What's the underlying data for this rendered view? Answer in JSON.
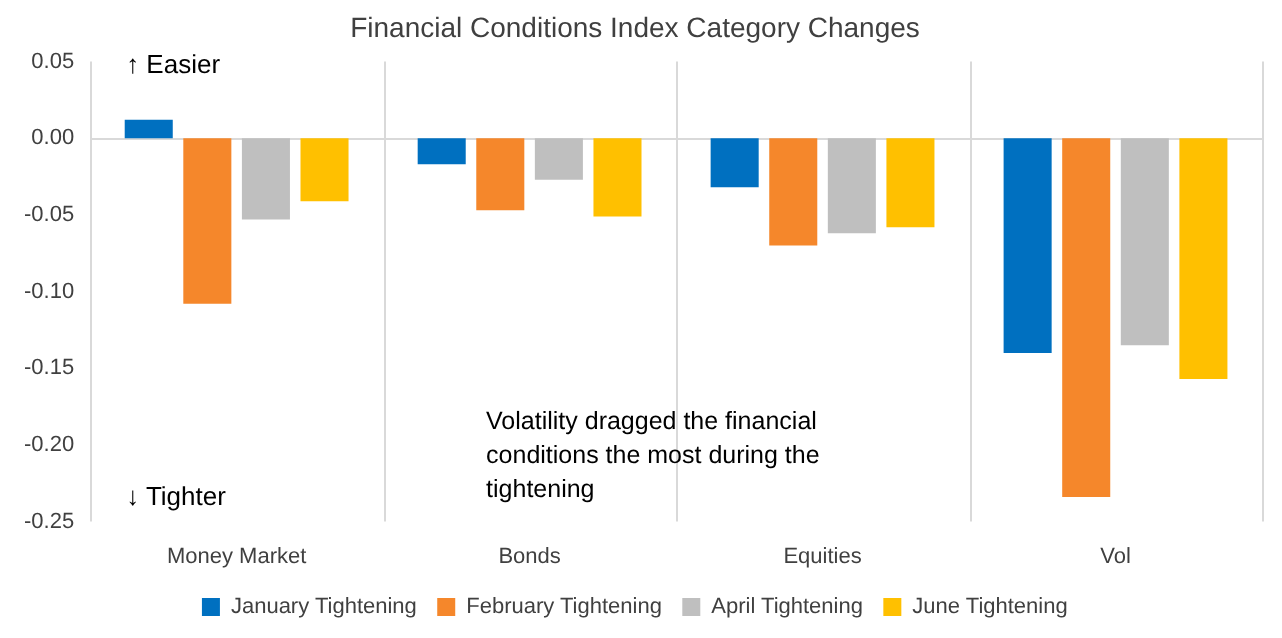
{
  "chart_data": {
    "type": "bar",
    "title": "Financial Conditions Index Category Changes",
    "categories": [
      "Money Market",
      "Bonds",
      "Equities",
      "Vol"
    ],
    "series": [
      {
        "name": "January Tightening",
        "color": "#0070c0",
        "values": [
          0.012,
          -0.017,
          -0.032,
          -0.14
        ]
      },
      {
        "name": "February Tightening",
        "color": "#f5872b",
        "values": [
          -0.108,
          -0.047,
          -0.07,
          -0.234
        ]
      },
      {
        "name": "April Tightening",
        "color": "#bfbfbf",
        "values": [
          -0.053,
          -0.027,
          -0.062,
          -0.135
        ]
      },
      {
        "name": "June Tightening",
        "color": "#ffc000",
        "values": [
          -0.041,
          -0.051,
          -0.058,
          -0.157
        ]
      }
    ],
    "ylim": [
      -0.25,
      0.05
    ],
    "yticks": [
      {
        "value": -0.25,
        "label": "-0.25"
      },
      {
        "value": -0.2,
        "label": "-0.20"
      },
      {
        "value": -0.15,
        "label": "-0.15"
      },
      {
        "value": -0.1,
        "label": "-0.10"
      },
      {
        "value": -0.05,
        "label": "-0.05"
      },
      {
        "value": 0,
        "label": "0.00"
      },
      {
        "value": 0.05,
        "label": "0.05"
      }
    ],
    "grid": "x",
    "legend": "bottom",
    "ref_lines": [
      {
        "axis": "y",
        "value": 0,
        "color": "#d9d9d9"
      }
    ],
    "annotations": [
      "↑ Easier",
      "↓ Tighter",
      "Volatility dragged the financial conditions the most during the tightening"
    ]
  }
}
